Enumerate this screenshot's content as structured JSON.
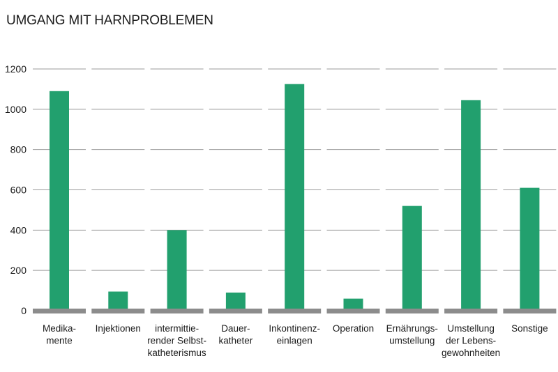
{
  "chart_data": {
    "type": "bar",
    "title": "UMGANG MIT HARNPROBLEMEN",
    "xlabel": "",
    "ylabel": "",
    "ylim": [
      0,
      1200
    ],
    "yticks": [
      0,
      200,
      400,
      600,
      800,
      1000,
      1200
    ],
    "ytick_labels": [
      "0",
      "200",
      "400",
      "600",
      "800",
      "1000",
      "1200"
    ],
    "grid": true,
    "legend": "none",
    "categories": [
      [
        "Medika-",
        "mente"
      ],
      [
        "Injektionen"
      ],
      [
        "intermittie-",
        "render Selbst-",
        "katheterismus"
      ],
      [
        "Dauer-",
        "katheter"
      ],
      [
        "Inkontinenz-",
        "einlagen"
      ],
      [
        "Operation"
      ],
      [
        "Ernährungs-",
        "umstellung"
      ],
      [
        "Umstellung",
        "der Lebens-",
        "gewohnheiten"
      ],
      [
        "Sonstige"
      ]
    ],
    "values": [
      1090,
      95,
      400,
      90,
      1125,
      60,
      520,
      1045,
      610
    ],
    "colors": {
      "bar": "#22a06e",
      "grid": "#9a9a9a",
      "baseline": "#8c8c8c",
      "text": "#1a1a1a"
    }
  }
}
